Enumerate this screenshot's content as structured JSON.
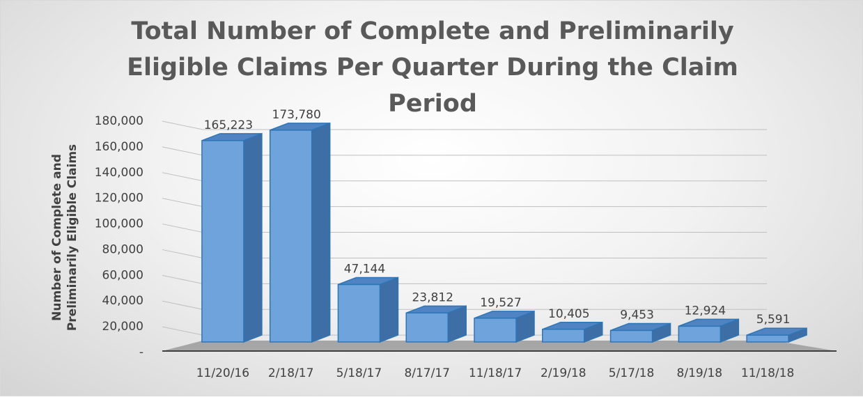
{
  "chart_data": {
    "type": "bar3d",
    "title": "Total Number of Complete and Preliminarily Eligible Claims Per Quarter During the Claim Period",
    "y_label": "Number of Complete and Preliminarily Eligible Claims",
    "categories": [
      "11/20/16",
      "2/18/17",
      "5/18/17",
      "8/17/17",
      "11/18/17",
      "2/19/18",
      "5/17/18",
      "8/19/18",
      "11/18/18"
    ],
    "values": [
      165223,
      173780,
      47144,
      23812,
      19527,
      10405,
      9453,
      12924,
      5591
    ],
    "value_labels": [
      "165,223",
      "173,780",
      "47,144",
      "23,812",
      "19,527",
      "10,405",
      "9,453",
      "12,924",
      "5,591"
    ],
    "color": "#6fa3dc",
    "ylim": [
      0,
      180000
    ],
    "yticks": [
      {
        "value": 0,
        "label": "-"
      },
      {
        "value": 20000,
        "label": "20,000"
      },
      {
        "value": 40000,
        "label": "40,000"
      },
      {
        "value": 60000,
        "label": "60,000"
      },
      {
        "value": 80000,
        "label": "80,000"
      },
      {
        "value": 100000,
        "label": "100,000"
      },
      {
        "value": 120000,
        "label": "120,000"
      },
      {
        "value": 140000,
        "label": "140,000"
      },
      {
        "value": 160000,
        "label": "160,000"
      },
      {
        "value": 180000,
        "label": "180,000"
      }
    ],
    "grid": true
  }
}
